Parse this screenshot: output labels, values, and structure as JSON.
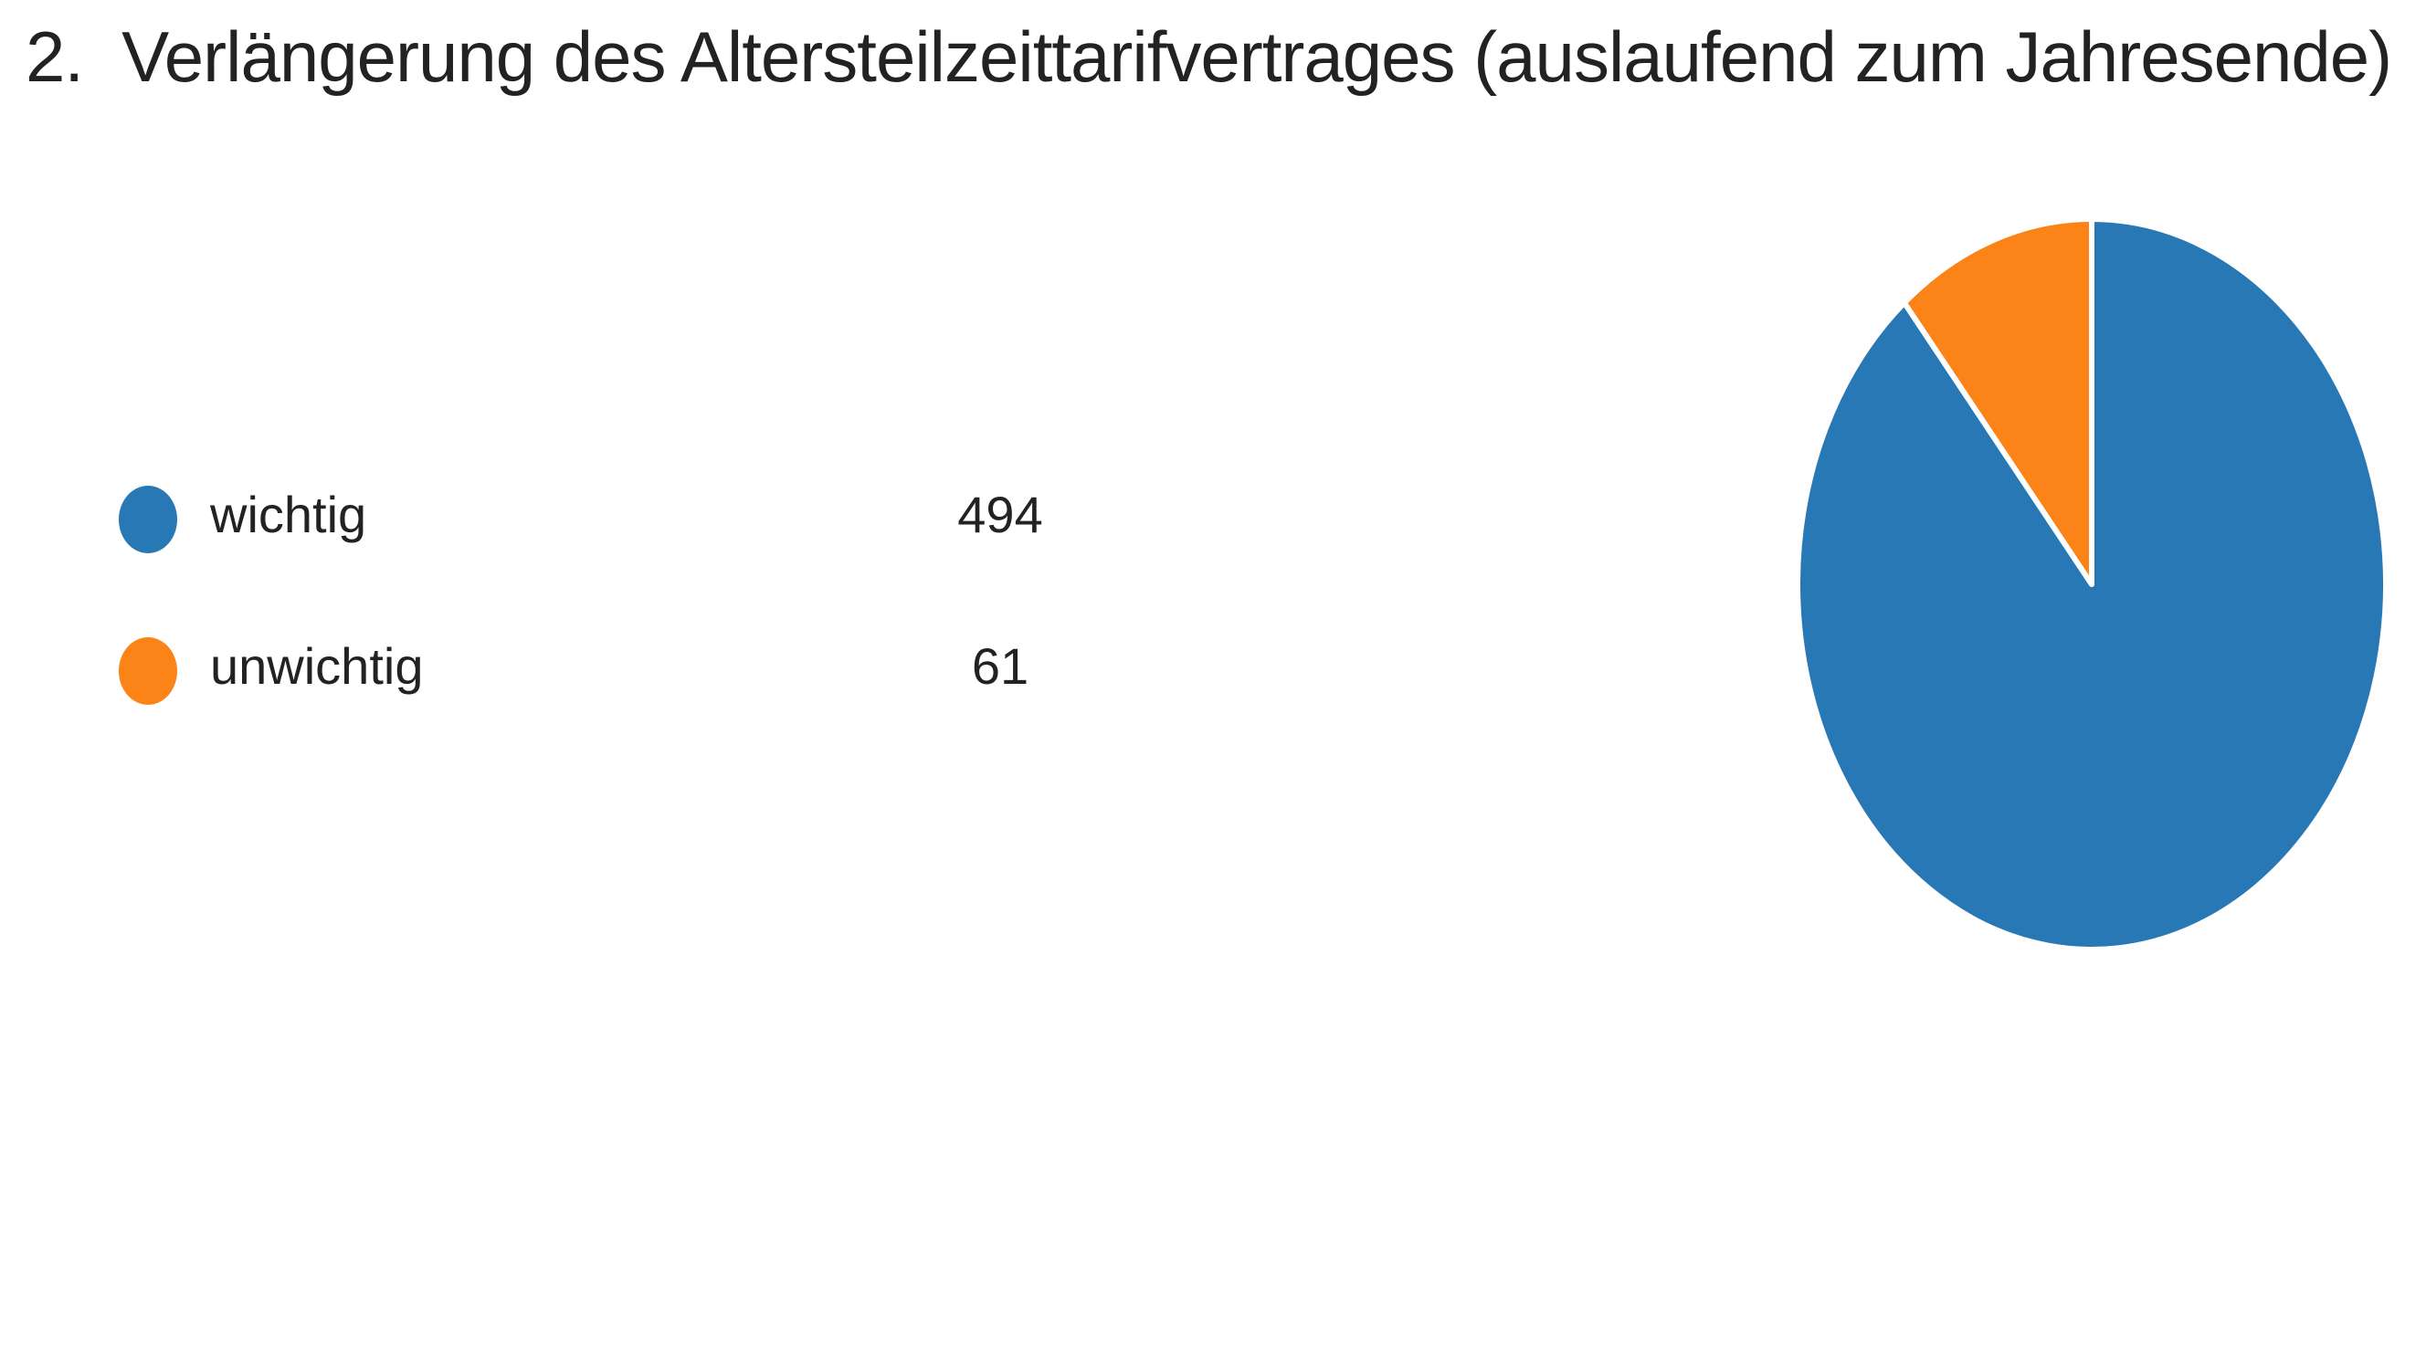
{
  "question": {
    "number": "2.",
    "text": "Verlängerung des Altersteilzeittarifvertrages (auslaufend zum Jahresende)"
  },
  "legend": [
    {
      "label": "wichtig",
      "count": "494",
      "color": "#2878b6"
    },
    {
      "label": "unwichtig",
      "count": "61",
      "color": "#fb8318"
    }
  ],
  "chart_data": {
    "type": "pie",
    "title": "Verlängerung des Altersteilzeittarifvertrages (auslaufend zum Jahresende)",
    "categories": [
      "wichtig",
      "unwichtig"
    ],
    "values": [
      494,
      61
    ],
    "colors": [
      "#2878b6",
      "#fb8318"
    ],
    "legend_position": "left"
  }
}
